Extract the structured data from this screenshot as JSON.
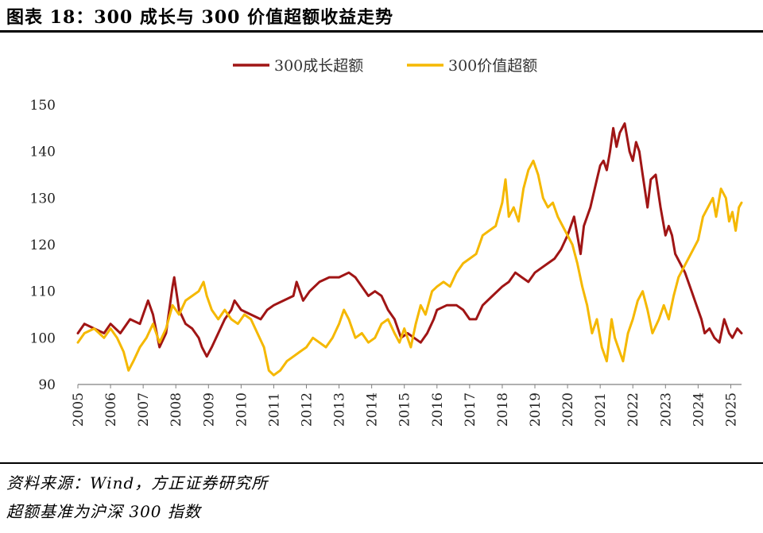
{
  "header": {
    "title": "图表 18：300 成长与 300 价值超额收益走势"
  },
  "footer": {
    "source": "资料来源：Wind，方正证券研究所",
    "note": "超额基准为沪深 300 指数"
  },
  "colors": {
    "growth": "#A01515",
    "value": "#F5B800",
    "axis": "#808080"
  },
  "chart_data": {
    "type": "line",
    "title": "",
    "xlabel": "",
    "ylabel": "",
    "ylim": [
      90,
      150
    ],
    "yticks": [
      "90",
      "100",
      "110",
      "120",
      "130",
      "140",
      "150"
    ],
    "xlim": [
      2005,
      2025.33
    ],
    "xticks": [
      "2005",
      "2006",
      "2007",
      "2008",
      "2009",
      "2010",
      "2011",
      "2012",
      "2013",
      "2014",
      "2015",
      "2016",
      "2017",
      "2018",
      "2019",
      "2020",
      "2021",
      "2022",
      "2023",
      "2024",
      "2025"
    ],
    "legend": "top-center",
    "grid": false,
    "series": [
      {
        "name": "300成长超额",
        "color": "#A01515",
        "points": [
          [
            2005.0,
            101
          ],
          [
            2005.2,
            103
          ],
          [
            2005.5,
            102
          ],
          [
            2005.8,
            101
          ],
          [
            2006.0,
            103
          ],
          [
            2006.3,
            101
          ],
          [
            2006.6,
            104
          ],
          [
            2006.9,
            103
          ],
          [
            2007.0,
            105
          ],
          [
            2007.15,
            108
          ],
          [
            2007.3,
            105
          ],
          [
            2007.5,
            98
          ],
          [
            2007.7,
            101
          ],
          [
            2007.8,
            106
          ],
          [
            2007.9,
            111
          ],
          [
            2007.95,
            113
          ],
          [
            2008.1,
            106
          ],
          [
            2008.3,
            103
          ],
          [
            2008.5,
            102
          ],
          [
            2008.7,
            100
          ],
          [
            2008.8,
            98
          ],
          [
            2008.95,
            96
          ],
          [
            2009.1,
            98
          ],
          [
            2009.3,
            101
          ],
          [
            2009.5,
            104
          ],
          [
            2009.7,
            106
          ],
          [
            2009.8,
            108
          ],
          [
            2010.0,
            106
          ],
          [
            2010.3,
            105
          ],
          [
            2010.6,
            104
          ],
          [
            2010.8,
            106
          ],
          [
            2011.0,
            107
          ],
          [
            2011.3,
            108
          ],
          [
            2011.6,
            109
          ],
          [
            2011.7,
            112
          ],
          [
            2011.9,
            108
          ],
          [
            2012.1,
            110
          ],
          [
            2012.4,
            112
          ],
          [
            2012.7,
            113
          ],
          [
            2013.0,
            113
          ],
          [
            2013.3,
            114
          ],
          [
            2013.5,
            113
          ],
          [
            2013.7,
            111
          ],
          [
            2013.9,
            109
          ],
          [
            2014.1,
            110
          ],
          [
            2014.3,
            109
          ],
          [
            2014.5,
            106
          ],
          [
            2014.7,
            104
          ],
          [
            2014.9,
            100
          ],
          [
            2015.1,
            101
          ],
          [
            2015.3,
            100
          ],
          [
            2015.5,
            99
          ],
          [
            2015.7,
            101
          ],
          [
            2015.9,
            104
          ],
          [
            2016.0,
            106
          ],
          [
            2016.3,
            107
          ],
          [
            2016.6,
            107
          ],
          [
            2016.8,
            106
          ],
          [
            2017.0,
            104
          ],
          [
            2017.2,
            104
          ],
          [
            2017.4,
            107
          ],
          [
            2017.7,
            109
          ],
          [
            2018.0,
            111
          ],
          [
            2018.2,
            112
          ],
          [
            2018.4,
            114
          ],
          [
            2018.6,
            113
          ],
          [
            2018.8,
            112
          ],
          [
            2019.0,
            114
          ],
          [
            2019.2,
            115
          ],
          [
            2019.4,
            116
          ],
          [
            2019.6,
            117
          ],
          [
            2019.8,
            119
          ],
          [
            2020.0,
            122
          ],
          [
            2020.1,
            124
          ],
          [
            2020.2,
            126
          ],
          [
            2020.3,
            122
          ],
          [
            2020.4,
            118
          ],
          [
            2020.5,
            124
          ],
          [
            2020.7,
            128
          ],
          [
            2020.9,
            134
          ],
          [
            2021.0,
            137
          ],
          [
            2021.1,
            138
          ],
          [
            2021.2,
            136
          ],
          [
            2021.3,
            140
          ],
          [
            2021.4,
            145
          ],
          [
            2021.5,
            141
          ],
          [
            2021.6,
            144
          ],
          [
            2021.75,
            146
          ],
          [
            2021.9,
            140
          ],
          [
            2022.0,
            138
          ],
          [
            2022.1,
            142
          ],
          [
            2022.2,
            140
          ],
          [
            2022.3,
            135
          ],
          [
            2022.45,
            128
          ],
          [
            2022.55,
            134
          ],
          [
            2022.7,
            135
          ],
          [
            2022.85,
            128
          ],
          [
            2023.0,
            122
          ],
          [
            2023.1,
            124
          ],
          [
            2023.2,
            122
          ],
          [
            2023.3,
            118
          ],
          [
            2023.45,
            116
          ],
          [
            2023.6,
            114
          ],
          [
            2023.8,
            110
          ],
          [
            2023.95,
            107
          ],
          [
            2024.1,
            104
          ],
          [
            2024.2,
            101
          ],
          [
            2024.35,
            102
          ],
          [
            2024.5,
            100
          ],
          [
            2024.65,
            99
          ],
          [
            2024.8,
            104
          ],
          [
            2024.95,
            101
          ],
          [
            2025.05,
            100
          ],
          [
            2025.2,
            102
          ],
          [
            2025.33,
            101
          ]
        ]
      },
      {
        "name": "300价值超额",
        "color": "#F5B800",
        "points": [
          [
            2005.0,
            99
          ],
          [
            2005.2,
            101
          ],
          [
            2005.5,
            102
          ],
          [
            2005.8,
            100
          ],
          [
            2006.0,
            102
          ],
          [
            2006.2,
            100
          ],
          [
            2006.4,
            97
          ],
          [
            2006.55,
            93
          ],
          [
            2006.7,
            95
          ],
          [
            2006.9,
            98
          ],
          [
            2007.1,
            100
          ],
          [
            2007.3,
            103
          ],
          [
            2007.5,
            99
          ],
          [
            2007.7,
            102
          ],
          [
            2007.9,
            107
          ],
          [
            2008.1,
            105
          ],
          [
            2008.3,
            108
          ],
          [
            2008.5,
            109
          ],
          [
            2008.7,
            110
          ],
          [
            2008.85,
            112
          ],
          [
            2008.95,
            109
          ],
          [
            2009.1,
            106
          ],
          [
            2009.3,
            104
          ],
          [
            2009.5,
            106
          ],
          [
            2009.7,
            104
          ],
          [
            2009.9,
            103
          ],
          [
            2010.1,
            105
          ],
          [
            2010.3,
            104
          ],
          [
            2010.5,
            101
          ],
          [
            2010.7,
            98
          ],
          [
            2010.85,
            93
          ],
          [
            2011.0,
            92
          ],
          [
            2011.2,
            93
          ],
          [
            2011.4,
            95
          ],
          [
            2011.6,
            96
          ],
          [
            2011.8,
            97
          ],
          [
            2012.0,
            98
          ],
          [
            2012.2,
            100
          ],
          [
            2012.4,
            99
          ],
          [
            2012.6,
            98
          ],
          [
            2012.8,
            100
          ],
          [
            2013.0,
            103
          ],
          [
            2013.15,
            106
          ],
          [
            2013.3,
            104
          ],
          [
            2013.5,
            100
          ],
          [
            2013.7,
            101
          ],
          [
            2013.9,
            99
          ],
          [
            2014.1,
            100
          ],
          [
            2014.3,
            103
          ],
          [
            2014.5,
            104
          ],
          [
            2014.7,
            101
          ],
          [
            2014.85,
            99
          ],
          [
            2015.0,
            102
          ],
          [
            2015.2,
            98
          ],
          [
            2015.35,
            103
          ],
          [
            2015.5,
            107
          ],
          [
            2015.65,
            105
          ],
          [
            2015.85,
            110
          ],
          [
            2016.0,
            111
          ],
          [
            2016.2,
            112
          ],
          [
            2016.4,
            111
          ],
          [
            2016.6,
            114
          ],
          [
            2016.8,
            116
          ],
          [
            2017.0,
            117
          ],
          [
            2017.2,
            118
          ],
          [
            2017.4,
            122
          ],
          [
            2017.6,
            123
          ],
          [
            2017.8,
            124
          ],
          [
            2018.0,
            129
          ],
          [
            2018.1,
            134
          ],
          [
            2018.2,
            126
          ],
          [
            2018.35,
            128
          ],
          [
            2018.5,
            125
          ],
          [
            2018.65,
            132
          ],
          [
            2018.8,
            136
          ],
          [
            2018.95,
            138
          ],
          [
            2019.1,
            135
          ],
          [
            2019.25,
            130
          ],
          [
            2019.4,
            128
          ],
          [
            2019.55,
            129
          ],
          [
            2019.7,
            126
          ],
          [
            2019.85,
            124
          ],
          [
            2020.0,
            122
          ],
          [
            2020.15,
            120
          ],
          [
            2020.3,
            116
          ],
          [
            2020.45,
            111
          ],
          [
            2020.6,
            107
          ],
          [
            2020.75,
            101
          ],
          [
            2020.9,
            104
          ],
          [
            2021.05,
            98
          ],
          [
            2021.2,
            95
          ],
          [
            2021.35,
            104
          ],
          [
            2021.45,
            100
          ],
          [
            2021.55,
            98
          ],
          [
            2021.7,
            95
          ],
          [
            2021.85,
            101
          ],
          [
            2022.0,
            104
          ],
          [
            2022.15,
            108
          ],
          [
            2022.3,
            110
          ],
          [
            2022.45,
            106
          ],
          [
            2022.6,
            101
          ],
          [
            2022.8,
            104
          ],
          [
            2022.95,
            107
          ],
          [
            2023.1,
            104
          ],
          [
            2023.25,
            109
          ],
          [
            2023.4,
            113
          ],
          [
            2023.55,
            115
          ],
          [
            2023.7,
            117
          ],
          [
            2023.85,
            119
          ],
          [
            2024.0,
            121
          ],
          [
            2024.15,
            126
          ],
          [
            2024.3,
            128
          ],
          [
            2024.45,
            130
          ],
          [
            2024.55,
            126
          ],
          [
            2024.7,
            132
          ],
          [
            2024.85,
            130
          ],
          [
            2024.95,
            125
          ],
          [
            2025.05,
            127
          ],
          [
            2025.15,
            123
          ],
          [
            2025.25,
            128
          ],
          [
            2025.33,
            129
          ]
        ]
      }
    ]
  }
}
